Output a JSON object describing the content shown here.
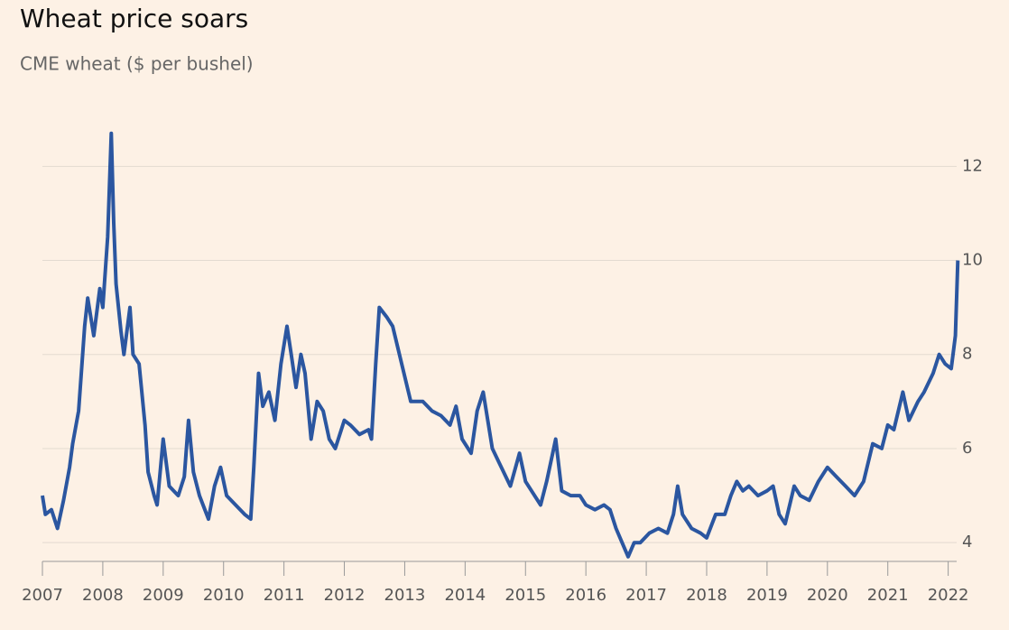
{
  "chart_data": {
    "type": "line",
    "title": "Wheat price soars",
    "subtitle": "CME wheat ($ per bushel)",
    "x": [
      2007.0,
      2007.05,
      2007.15,
      2007.25,
      2007.35,
      2007.45,
      2007.5,
      2007.6,
      2007.7,
      2007.75,
      2007.85,
      2007.95,
      2008.0,
      2008.08,
      2008.14,
      2008.18,
      2008.22,
      2008.3,
      2008.35,
      2008.45,
      2008.5,
      2008.6,
      2008.7,
      2008.75,
      2008.85,
      2008.9,
      2009.0,
      2009.1,
      2009.25,
      2009.35,
      2009.42,
      2009.5,
      2009.6,
      2009.75,
      2009.85,
      2009.95,
      2010.05,
      2010.2,
      2010.35,
      2010.45,
      2010.5,
      2010.58,
      2010.65,
      2010.75,
      2010.85,
      2010.95,
      2011.05,
      2011.12,
      2011.2,
      2011.28,
      2011.35,
      2011.45,
      2011.55,
      2011.65,
      2011.75,
      2011.85,
      2012.0,
      2012.1,
      2012.25,
      2012.4,
      2012.45,
      2012.52,
      2012.58,
      2012.7,
      2012.8,
      2012.95,
      2013.1,
      2013.3,
      2013.45,
      2013.6,
      2013.75,
      2013.85,
      2013.95,
      2014.1,
      2014.2,
      2014.3,
      2014.45,
      2014.6,
      2014.75,
      2014.9,
      2015.0,
      2015.15,
      2015.25,
      2015.35,
      2015.45,
      2015.5,
      2015.6,
      2015.75,
      2015.9,
      2016.0,
      2016.15,
      2016.3,
      2016.4,
      2016.5,
      2016.6,
      2016.7,
      2016.8,
      2016.9,
      2017.05,
      2017.2,
      2017.35,
      2017.45,
      2017.52,
      2017.6,
      2017.75,
      2017.9,
      2018.0,
      2018.15,
      2018.3,
      2018.4,
      2018.5,
      2018.6,
      2018.7,
      2018.85,
      2019.0,
      2019.1,
      2019.2,
      2019.3,
      2019.45,
      2019.55,
      2019.7,
      2019.85,
      2020.0,
      2020.15,
      2020.3,
      2020.45,
      2020.6,
      2020.75,
      2020.9,
      2021.0,
      2021.1,
      2021.25,
      2021.35,
      2021.5,
      2021.6,
      2021.75,
      2021.85,
      2021.95,
      2022.05,
      2022.12,
      2022.16
    ],
    "series": [
      {
        "name": "CME wheat",
        "color": "#2b56a0",
        "values": [
          5.0,
          4.6,
          4.7,
          4.3,
          4.9,
          5.6,
          6.1,
          6.8,
          8.6,
          9.2,
          8.4,
          9.4,
          9.0,
          10.5,
          12.7,
          10.8,
          9.5,
          8.5,
          8.0,
          9.0,
          8.0,
          7.8,
          6.5,
          5.5,
          5.0,
          4.8,
          6.2,
          5.2,
          5.0,
          5.4,
          6.6,
          5.5,
          5.0,
          4.5,
          5.2,
          5.6,
          5.0,
          4.8,
          4.6,
          4.5,
          5.6,
          7.6,
          6.9,
          7.2,
          6.6,
          7.8,
          8.6,
          8.0,
          7.3,
          8.0,
          7.6,
          6.2,
          7.0,
          6.8,
          6.2,
          6.0,
          6.6,
          6.5,
          6.3,
          6.4,
          6.2,
          7.8,
          9.0,
          8.8,
          8.6,
          7.8,
          7.0,
          7.0,
          6.8,
          6.7,
          6.5,
          6.9,
          6.2,
          5.9,
          6.8,
          7.2,
          6.0,
          5.6,
          5.2,
          5.9,
          5.3,
          5.0,
          4.8,
          5.3,
          5.9,
          6.2,
          5.1,
          5.0,
          5.0,
          4.8,
          4.7,
          4.8,
          4.7,
          4.3,
          4.0,
          3.7,
          4.0,
          4.0,
          4.2,
          4.3,
          4.2,
          4.6,
          5.2,
          4.6,
          4.3,
          4.2,
          4.1,
          4.6,
          4.6,
          5.0,
          5.3,
          5.1,
          5.2,
          5.0,
          5.1,
          5.2,
          4.6,
          4.4,
          5.2,
          5.0,
          4.9,
          5.3,
          5.6,
          5.4,
          5.2,
          5.0,
          5.3,
          6.1,
          6.0,
          6.5,
          6.4,
          7.2,
          6.6,
          7.0,
          7.2,
          7.6,
          8.0,
          7.8,
          7.7,
          8.4,
          10.0
        ]
      }
    ],
    "xlim": [
      2007,
      2022.2
    ],
    "xticks": [
      2007,
      2008,
      2009,
      2010,
      2011,
      2012,
      2013,
      2014,
      2015,
      2016,
      2017,
      2018,
      2019,
      2020,
      2021,
      2022
    ],
    "ylim": [
      3.6,
      13.1
    ],
    "yticks": [
      4,
      6,
      8,
      10,
      12
    ],
    "grid": true
  }
}
